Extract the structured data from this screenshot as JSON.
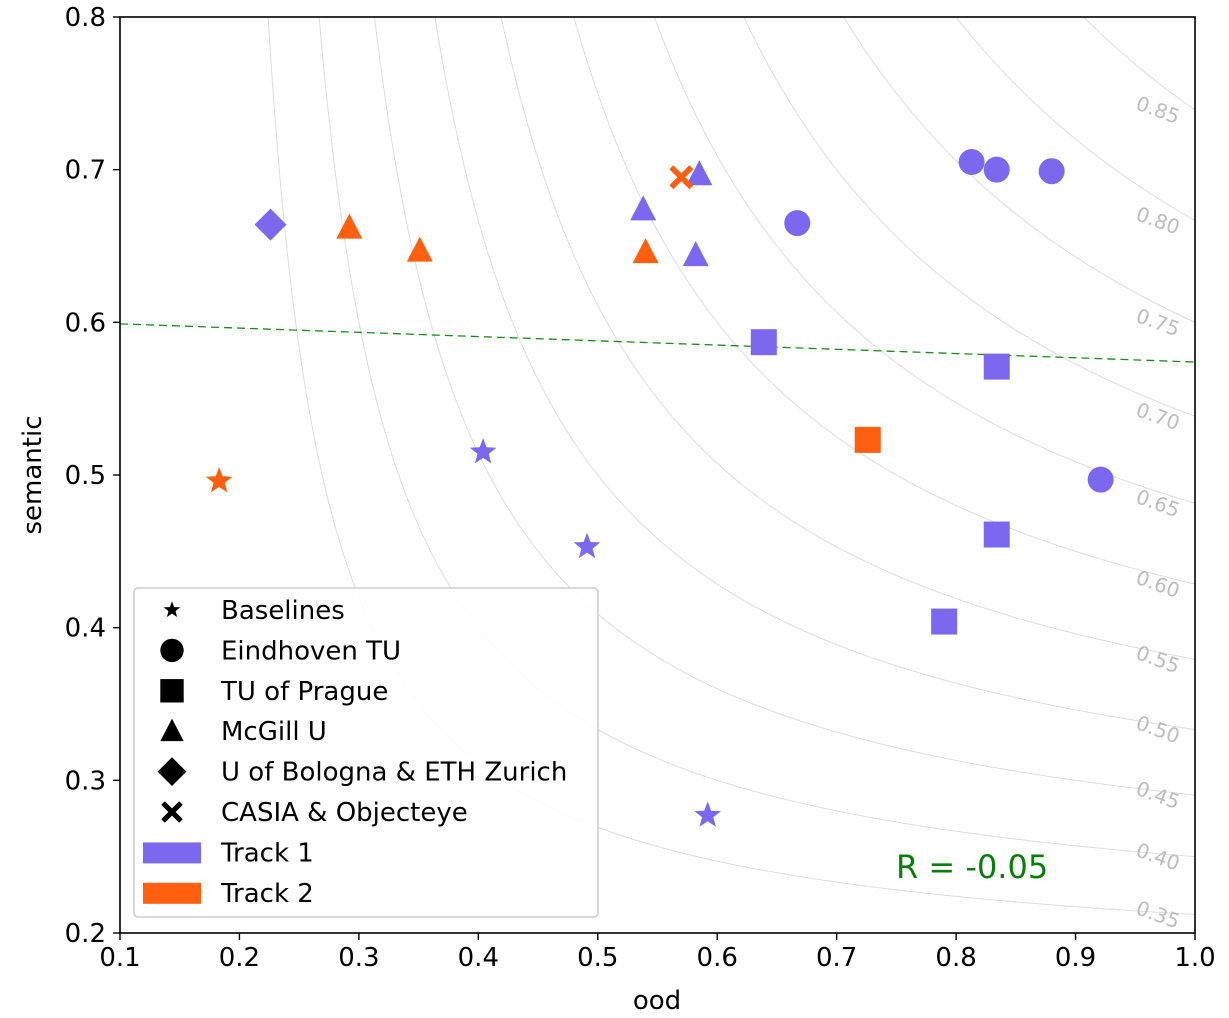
{
  "chart_data": {
    "type": "scatter",
    "xlabel": "ood",
    "ylabel": "semantic",
    "xlim": [
      0.1,
      1.0
    ],
    "ylim": [
      0.2,
      0.8
    ],
    "xticks": [
      "0.1",
      "0.2",
      "0.3",
      "0.4",
      "0.5",
      "0.6",
      "0.7",
      "0.8",
      "0.9",
      "1.0"
    ],
    "yticks": [
      "0.2",
      "0.3",
      "0.4",
      "0.5",
      "0.6",
      "0.7",
      "0.8"
    ],
    "grid": false,
    "colors": {
      "track1": "#7b68ee",
      "track2": "#ff5f0f",
      "trend": "#1a8a1a",
      "contour": "#dddddd"
    },
    "contour_levels": [
      "0.35",
      "0.40",
      "0.45",
      "0.50",
      "0.55",
      "0.60",
      "0.65",
      "0.70",
      "0.75",
      "0.80",
      "0.85"
    ],
    "trend_line": {
      "x": [
        0.1,
        1.0
      ],
      "y": [
        0.599,
        0.574
      ],
      "style": "dashed"
    },
    "annotation": "R = -0.05",
    "legend": {
      "position": "lower-left",
      "entries": [
        {
          "label": "Baselines",
          "marker": "star"
        },
        {
          "label": "Eindhoven TU",
          "marker": "circle"
        },
        {
          "label": "TU of Prague",
          "marker": "square"
        },
        {
          "label": "McGill U",
          "marker": "triangle"
        },
        {
          "label": "U of Bologna & ETH Zurich",
          "marker": "diamond"
        },
        {
          "label": "CASIA & Objecteye",
          "marker": "x"
        },
        {
          "label": "Track 1",
          "marker": "patch-track1"
        },
        {
          "label": "Track 2",
          "marker": "patch-track2"
        }
      ]
    },
    "series": [
      {
        "name": "Baselines",
        "marker": "star",
        "points": [
          {
            "x": 0.404,
            "y": 0.515,
            "track": 1
          },
          {
            "x": 0.491,
            "y": 0.453,
            "track": 1
          },
          {
            "x": 0.592,
            "y": 0.277,
            "track": 1
          },
          {
            "x": 0.183,
            "y": 0.496,
            "track": 2
          }
        ]
      },
      {
        "name": "Eindhoven TU",
        "marker": "circle",
        "points": [
          {
            "x": 0.813,
            "y": 0.705,
            "track": 1
          },
          {
            "x": 0.834,
            "y": 0.7,
            "track": 1
          },
          {
            "x": 0.88,
            "y": 0.699,
            "track": 1
          },
          {
            "x": 0.667,
            "y": 0.665,
            "track": 1
          },
          {
            "x": 0.921,
            "y": 0.497,
            "track": 1
          }
        ]
      },
      {
        "name": "TU of Prague",
        "marker": "square",
        "points": [
          {
            "x": 0.639,
            "y": 0.587,
            "track": 1
          },
          {
            "x": 0.834,
            "y": 0.571,
            "track": 1
          },
          {
            "x": 0.834,
            "y": 0.461,
            "track": 1
          },
          {
            "x": 0.79,
            "y": 0.404,
            "track": 1
          },
          {
            "x": 0.726,
            "y": 0.523,
            "track": 2
          }
        ]
      },
      {
        "name": "McGill U",
        "marker": "triangle",
        "points": [
          {
            "x": 0.538,
            "y": 0.674,
            "track": 1
          },
          {
            "x": 0.585,
            "y": 0.697,
            "track": 1
          },
          {
            "x": 0.582,
            "y": 0.644,
            "track": 1
          },
          {
            "x": 0.292,
            "y": 0.662,
            "track": 2
          },
          {
            "x": 0.351,
            "y": 0.647,
            "track": 2
          },
          {
            "x": 0.54,
            "y": 0.646,
            "track": 2
          }
        ]
      },
      {
        "name": "U of Bologna & ETH Zurich",
        "marker": "diamond",
        "points": [
          {
            "x": 0.226,
            "y": 0.664,
            "track": 1
          }
        ]
      },
      {
        "name": "CASIA & Objecteye",
        "marker": "x",
        "points": [
          {
            "x": 0.57,
            "y": 0.695,
            "track": 2
          }
        ]
      }
    ]
  }
}
